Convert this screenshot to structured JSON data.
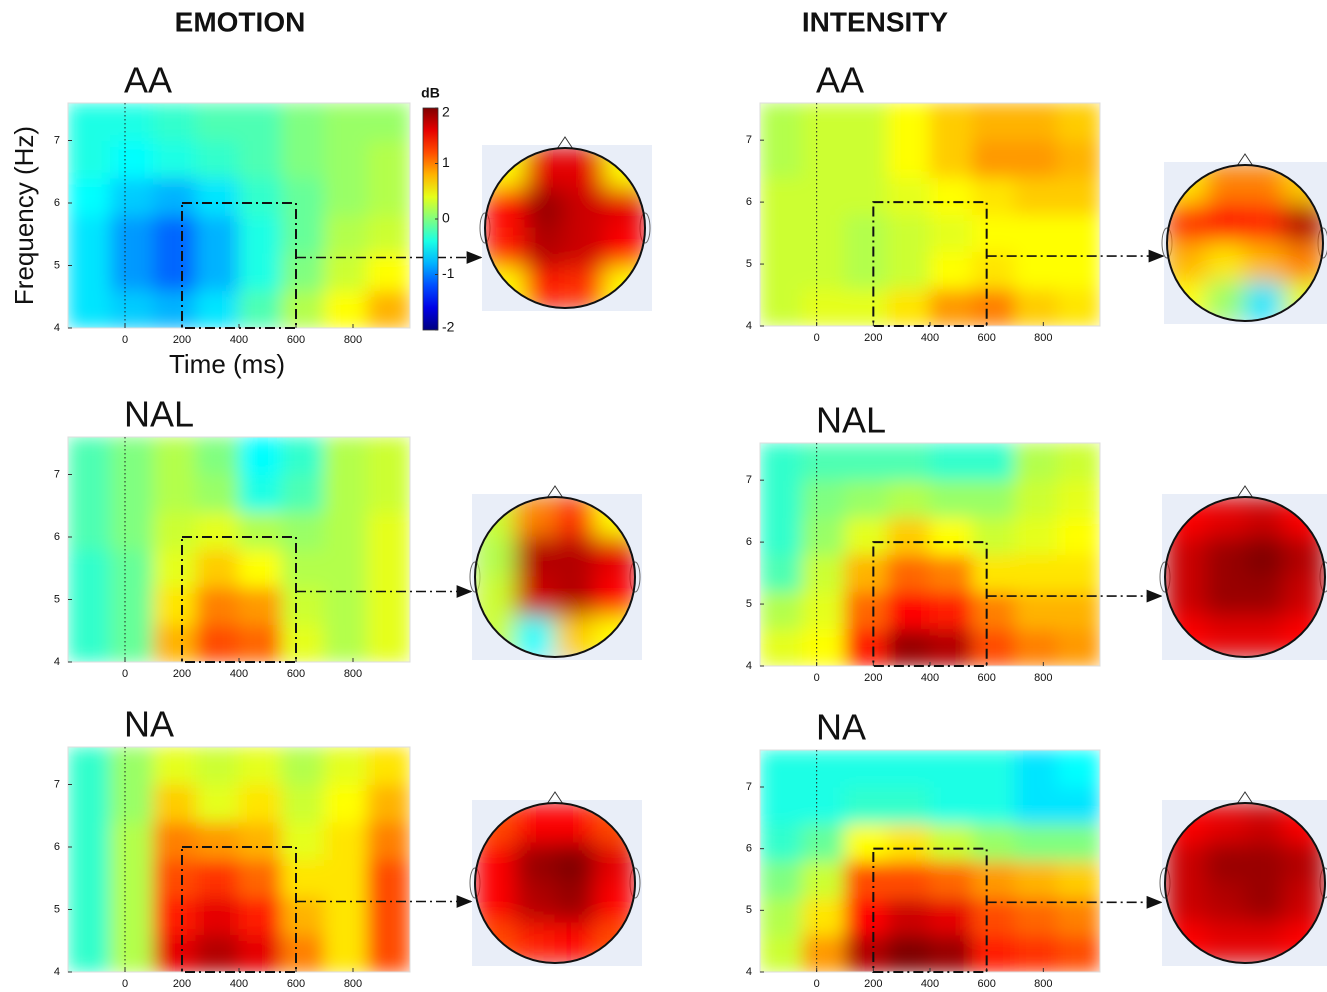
{
  "column_titles": [
    "EMOTION",
    "INTENSITY"
  ],
  "chart_data": [
    {
      "type": "heatmap",
      "title": "AA",
      "xlabel": "Time (ms)",
      "ylabel": "Frequency (Hz)",
      "x": [
        -125,
        25,
        175,
        325,
        475,
        625,
        775,
        925
      ],
      "y": [
        4.3,
        4.9,
        5.5,
        6.1,
        6.7,
        7.3
      ],
      "z": [
        [
          -0.6,
          -0.7,
          -0.8,
          -0.6,
          -0.2,
          0.2,
          0.5,
          0.8
        ],
        [
          -0.6,
          -0.9,
          -1.1,
          -0.8,
          -0.4,
          0,
          0.3,
          0.5
        ],
        [
          -0.6,
          -0.9,
          -1.1,
          -0.8,
          -0.4,
          -0.1,
          0.2,
          0.3
        ],
        [
          -0.5,
          -0.7,
          -0.8,
          -0.6,
          -0.3,
          -0.1,
          0.1,
          0.2
        ],
        [
          -0.4,
          -0.5,
          -0.4,
          -0.3,
          -0.2,
          0,
          0.1,
          0.2
        ],
        [
          -0.4,
          -0.4,
          -0.3,
          -0.2,
          -0.2,
          0,
          0.1,
          0.1
        ]
      ],
      "xlim": [
        -200,
        1000
      ],
      "ylim": [
        4,
        7.6
      ],
      "xticks": [
        0,
        200,
        400,
        600,
        800
      ],
      "yticks": [
        4,
        5,
        6,
        7
      ],
      "zlim": [
        -2,
        2
      ],
      "colorbar": {
        "label": "dB",
        "ticks": [
          -2,
          -1,
          0,
          1,
          2
        ]
      },
      "roi": {
        "x": [
          200,
          600
        ],
        "y": [
          4,
          6
        ]
      },
      "topomap": [
        [
          0.5,
          1.6,
          1.6,
          0.5
        ],
        [
          1.5,
          1.9,
          1.7,
          1.6
        ],
        [
          1.4,
          1.8,
          1.7,
          1.5
        ],
        [
          0.5,
          1.4,
          1.3,
          0.5
        ]
      ]
    },
    {
      "type": "heatmap",
      "title": "NAL",
      "x": [
        -125,
        25,
        175,
        325,
        475,
        625,
        775,
        925
      ],
      "y": [
        4.3,
        4.9,
        5.5,
        6.1,
        6.7,
        7.3
      ],
      "z": [
        [
          -0.3,
          -0.1,
          0.8,
          1.2,
          1.1,
          0.4,
          0.2,
          0.4
        ],
        [
          -0.3,
          -0.1,
          0.6,
          1.0,
          0.9,
          0.3,
          0.2,
          0.4
        ],
        [
          -0.3,
          -0.1,
          0.4,
          0.7,
          0.5,
          0.2,
          0.2,
          0.4
        ],
        [
          -0.2,
          0,
          0.3,
          0.4,
          0.2,
          0.1,
          0.2,
          0.4
        ],
        [
          -0.2,
          0,
          0.2,
          0.1,
          -0.4,
          -0.2,
          0.2,
          0.3
        ],
        [
          -0.2,
          0,
          0.2,
          0,
          -0.5,
          -0.3,
          0.2,
          0.3
        ]
      ],
      "xlim": [
        -200,
        1000
      ],
      "ylim": [
        4,
        7.6
      ],
      "xticks": [
        0,
        200,
        400,
        600,
        800
      ],
      "yticks": [
        4,
        5,
        6,
        7
      ],
      "zlim": [
        -2,
        2
      ],
      "roi": {
        "x": [
          200,
          600
        ],
        "y": [
          4,
          6
        ]
      },
      "topomap": [
        [
          0.3,
          1.0,
          1.3,
          0.5
        ],
        [
          0.2,
          1.8,
          1.8,
          1.6
        ],
        [
          0.3,
          1.7,
          1.8,
          1.5
        ],
        [
          0.3,
          -0.5,
          0.7,
          0.5
        ]
      ]
    },
    {
      "type": "heatmap",
      "title": "NA",
      "x": [
        -125,
        25,
        175,
        325,
        475,
        625,
        775,
        925
      ],
      "y": [
        4.3,
        4.9,
        5.5,
        6.1,
        6.7,
        7.3
      ],
      "z": [
        [
          -0.3,
          0.2,
          1.6,
          1.8,
          1.6,
          1.0,
          0.6,
          1.2
        ],
        [
          -0.3,
          0.2,
          1.4,
          1.6,
          1.4,
          0.8,
          0.6,
          1.2
        ],
        [
          -0.3,
          0.2,
          1.2,
          1.3,
          1.1,
          0.6,
          0.6,
          1.2
        ],
        [
          -0.3,
          0.2,
          1.0,
          0.9,
          0.8,
          0.4,
          0.6,
          1.0
        ],
        [
          -0.3,
          0.1,
          0.7,
          0.4,
          0.6,
          0.3,
          0.5,
          0.8
        ],
        [
          -0.3,
          0.1,
          0.4,
          0.3,
          0.4,
          0.2,
          0.4,
          0.6
        ]
      ],
      "xlim": [
        -200,
        1000
      ],
      "ylim": [
        4,
        7.6
      ],
      "xticks": [
        0,
        200,
        400,
        600,
        800
      ],
      "yticks": [
        4,
        5,
        6,
        7
      ],
      "zlim": [
        -2,
        2
      ],
      "roi": {
        "x": [
          200,
          600
        ],
        "y": [
          4,
          6
        ]
      },
      "topomap": [
        [
          1.2,
          1.5,
          1.5,
          1.2
        ],
        [
          1.5,
          1.9,
          2.0,
          1.6
        ],
        [
          1.5,
          1.8,
          1.9,
          1.5
        ],
        [
          1.2,
          1.4,
          1.5,
          1.2
        ]
      ]
    },
    {
      "type": "heatmap",
      "title": "AA",
      "x": [
        -125,
        25,
        175,
        325,
        475,
        625,
        775,
        925
      ],
      "y": [
        4.3,
        4.9,
        5.5,
        6.1,
        6.7,
        7.3
      ],
      "z": [
        [
          0.3,
          0.4,
          0.4,
          0.6,
          0.9,
          1.0,
          0.7,
          0.6
        ],
        [
          0.3,
          0.3,
          0.2,
          0.3,
          0.5,
          0.6,
          0.5,
          0.5
        ],
        [
          0.3,
          0.3,
          0.2,
          0.3,
          0.4,
          0.5,
          0.5,
          0.5
        ],
        [
          0.3,
          0.3,
          0.3,
          0.4,
          0.5,
          0.6,
          0.7,
          0.7
        ],
        [
          0.2,
          0.3,
          0.3,
          0.5,
          0.7,
          0.9,
          0.9,
          0.8
        ],
        [
          0.2,
          0.3,
          0.3,
          0.5,
          0.7,
          0.8,
          0.8,
          0.7
        ]
      ],
      "xlim": [
        -200,
        1000
      ],
      "ylim": [
        4,
        7.6
      ],
      "xticks": [
        0,
        200,
        400,
        600,
        800
      ],
      "yticks": [
        4,
        5,
        6,
        7
      ],
      "zlim": [
        -2,
        2
      ],
      "roi": {
        "x": [
          200,
          600
        ],
        "y": [
          4,
          6
        ]
      },
      "topomap": [
        [
          0.6,
          1.0,
          1.0,
          0.7
        ],
        [
          1.3,
          1.5,
          1.4,
          1.8
        ],
        [
          0.8,
          0.6,
          0.8,
          1.0
        ],
        [
          0.5,
          0.1,
          -0.6,
          0.4
        ]
      ]
    },
    {
      "type": "heatmap",
      "title": "NAL",
      "x": [
        -125,
        25,
        175,
        325,
        475,
        625,
        775,
        925
      ],
      "y": [
        4.3,
        4.9,
        5.5,
        6.1,
        6.7,
        7.3
      ],
      "z": [
        [
          0.4,
          0.5,
          1.4,
          1.9,
          1.8,
          1.2,
          1.0,
          0.9
        ],
        [
          0.2,
          0.4,
          1.1,
          1.5,
          1.4,
          1.0,
          0.8,
          0.8
        ],
        [
          -0.2,
          0.3,
          0.8,
          1.1,
          1.0,
          0.6,
          0.6,
          0.6
        ],
        [
          -0.3,
          0.1,
          0.4,
          0.7,
          0.5,
          0.3,
          0.4,
          0.5
        ],
        [
          -0.3,
          0,
          0.1,
          0.2,
          0.1,
          0.1,
          0.3,
          0.4
        ],
        [
          -0.3,
          -0.2,
          -0.2,
          -0.2,
          -0.3,
          -0.3,
          0.2,
          0.3
        ]
      ],
      "xlim": [
        -200,
        1000
      ],
      "ylim": [
        4,
        7.6
      ],
      "xticks": [
        0,
        200,
        400,
        600,
        800
      ],
      "yticks": [
        4,
        5,
        6,
        7
      ],
      "zlim": [
        -2,
        2
      ],
      "roi": {
        "x": [
          200,
          600
        ],
        "y": [
          4,
          6
        ]
      },
      "topomap": [
        [
          1.5,
          1.6,
          1.7,
          1.5
        ],
        [
          1.7,
          1.9,
          2.0,
          1.8
        ],
        [
          1.7,
          1.9,
          1.9,
          1.7
        ],
        [
          1.5,
          1.6,
          1.6,
          1.5
        ]
      ]
    },
    {
      "type": "heatmap",
      "title": "NA",
      "x": [
        -125,
        25,
        175,
        325,
        475,
        625,
        775,
        925
      ],
      "y": [
        4.3,
        4.9,
        5.5,
        6.1,
        6.7,
        7.3
      ],
      "z": [
        [
          0.3,
          0.9,
          1.8,
          2.0,
          1.9,
          1.4,
          1.3,
          1.2
        ],
        [
          0.2,
          0.6,
          1.5,
          1.7,
          1.6,
          1.2,
          1.1,
          1.0
        ],
        [
          0,
          0.3,
          1.2,
          1.2,
          1.1,
          0.9,
          0.8,
          0.7
        ],
        [
          -0.3,
          -0.1,
          0.5,
          0.6,
          0.3,
          0.1,
          0,
          0
        ],
        [
          -0.4,
          -0.4,
          -0.3,
          -0.3,
          -0.4,
          -0.4,
          -0.6,
          -0.6
        ],
        [
          -0.4,
          -0.4,
          -0.4,
          -0.4,
          -0.4,
          -0.4,
          -0.6,
          -0.5
        ]
      ],
      "xlim": [
        -200,
        1000
      ],
      "ylim": [
        4,
        7.6
      ],
      "xticks": [
        0,
        200,
        400,
        600,
        800
      ],
      "yticks": [
        4,
        5,
        6,
        7
      ],
      "zlim": [
        -2,
        2
      ],
      "roi": {
        "x": [
          200,
          600
        ],
        "y": [
          4,
          6
        ]
      },
      "topomap": [
        [
          1.5,
          1.6,
          1.7,
          1.5
        ],
        [
          1.7,
          1.9,
          1.9,
          1.8
        ],
        [
          1.7,
          1.8,
          1.9,
          1.7
        ],
        [
          1.5,
          1.6,
          1.6,
          1.5
        ]
      ]
    }
  ]
}
